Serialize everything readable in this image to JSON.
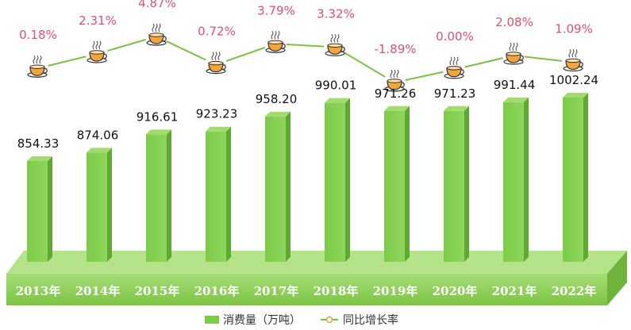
{
  "chart_data": {
    "type": "bar",
    "categories": [
      "2013年",
      "2014年",
      "2015年",
      "2016年",
      "2017年",
      "2018年",
      "2019年",
      "2020年",
      "2021年",
      "2022年"
    ],
    "series": [
      {
        "name": "消费量（万吨）",
        "type": "bar",
        "values": [
          854.33,
          874.06,
          916.61,
          923.23,
          958.2,
          990.01,
          971.26,
          971.23,
          991.44,
          1002.24
        ],
        "labels": [
          "854.33",
          "874.06",
          "916.61",
          "923.23",
          "958.20",
          "990.01",
          "971.26",
          "971.23",
          "991.44",
          "1002.24"
        ]
      },
      {
        "name": "同比增长率",
        "type": "line",
        "values": [
          0.18,
          2.31,
          4.87,
          0.72,
          3.79,
          3.32,
          -1.89,
          0.0,
          2.08,
          1.09
        ],
        "labels": [
          "0.18%",
          "2.31%",
          "4.87%",
          "0.72%",
          "3.79%",
          "3.32%",
          "-1.89%",
          "0.00%",
          "2.08%",
          "1.09%"
        ],
        "marker": "teacup-icon"
      }
    ],
    "legend_position": "bottom-center",
    "grid": false
  },
  "colors": {
    "bar_front": "#7ccc48",
    "bar_side": "#5fa834",
    "bar_top": "#a3dc6e",
    "floor": "#8dd152",
    "line": "#7ac143",
    "pct_text": "#e0506e",
    "value_text": "#111111"
  }
}
